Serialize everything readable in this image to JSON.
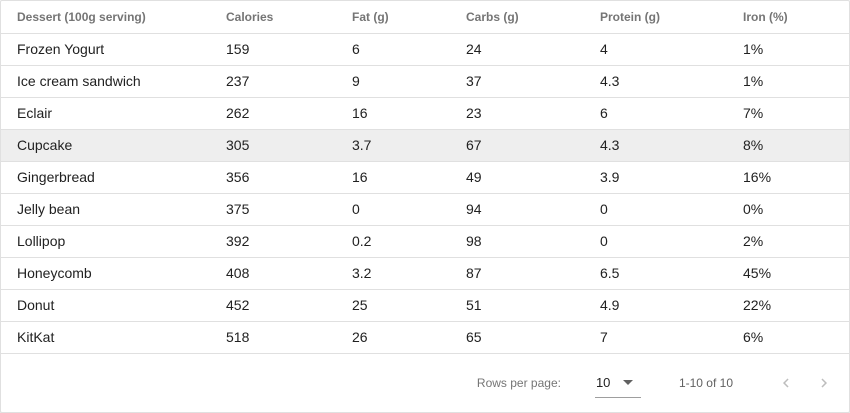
{
  "table": {
    "headers": [
      "Dessert (100g serving)",
      "Calories",
      "Fat (g)",
      "Carbs (g)",
      "Protein (g)",
      "Iron (%)"
    ],
    "rows": [
      [
        "Frozen Yogurt",
        "159",
        "6",
        "24",
        "4",
        "1%"
      ],
      [
        "Ice cream sandwich",
        "237",
        "9",
        "37",
        "4.3",
        "1%"
      ],
      [
        "Eclair",
        "262",
        "16",
        "23",
        "6",
        "7%"
      ],
      [
        "Cupcake",
        "305",
        "3.7",
        "67",
        "4.3",
        "8%"
      ],
      [
        "Gingerbread",
        "356",
        "16",
        "49",
        "3.9",
        "16%"
      ],
      [
        "Jelly bean",
        "375",
        "0",
        "94",
        "0",
        "0%"
      ],
      [
        "Lollipop",
        "392",
        "0.2",
        "98",
        "0",
        "2%"
      ],
      [
        "Honeycomb",
        "408",
        "3.2",
        "87",
        "6.5",
        "45%"
      ],
      [
        "Donut",
        "452",
        "25",
        "51",
        "4.9",
        "22%"
      ],
      [
        "KitKat",
        "518",
        "26",
        "65",
        "7",
        "6%"
      ]
    ],
    "highlighted_row": 3
  },
  "footer": {
    "rows_per_page_label": "Rows per page:",
    "rows_per_page_value": "10",
    "range_text": "1-10 of 10",
    "prev_icon": "chevron-left-icon",
    "next_icon": "chevron-right-icon"
  },
  "colors": {
    "header_text": "#757575",
    "row_text": "#212121",
    "hover_row": "#eeeeee",
    "divider": "#e0e0e0"
  }
}
